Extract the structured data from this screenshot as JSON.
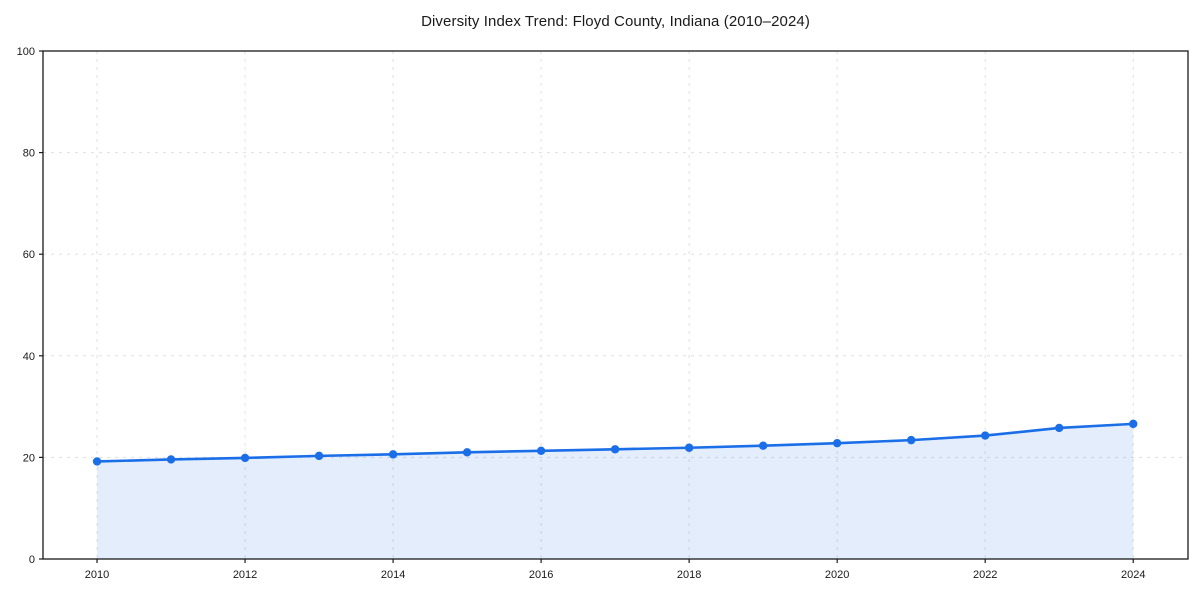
{
  "chart_data": {
    "type": "line",
    "title": "Diversity Index Trend: Floyd County, Indiana (2010–2024)",
    "xlabel": "",
    "ylabel": "",
    "x": [
      2010,
      2011,
      2012,
      2013,
      2014,
      2015,
      2016,
      2017,
      2018,
      2019,
      2020,
      2021,
      2022,
      2023,
      2024
    ],
    "series": [
      {
        "name": "Diversity Index",
        "values": [
          19.2,
          19.6,
          19.9,
          20.3,
          20.6,
          21.0,
          21.3,
          21.6,
          21.9,
          22.3,
          22.8,
          23.4,
          24.3,
          25.8,
          26.6
        ]
      }
    ],
    "ylim": [
      0,
      100
    ],
    "xlim": [
      2009.27,
      2024.74
    ],
    "yticks": [
      0,
      20,
      40,
      60,
      80,
      100
    ],
    "xticks": [
      2010,
      2012,
      2014,
      2016,
      2018,
      2020,
      2022,
      2024
    ],
    "grid": "dotted-both-axes",
    "legend": "none",
    "colors": {
      "line": "#1a6ee8",
      "marker": "#1a6ee8",
      "area_fill": "rgba(26,110,232,0.12)",
      "gridline": "#e0e0e0",
      "spine": "#1a1a1a",
      "tick_label": "#1a1a1a",
      "background": "#ffffff"
    },
    "style": {
      "marker_shape": "circle",
      "area_fill_enabled": true,
      "area_fill_extent": "data-range-only"
    }
  }
}
